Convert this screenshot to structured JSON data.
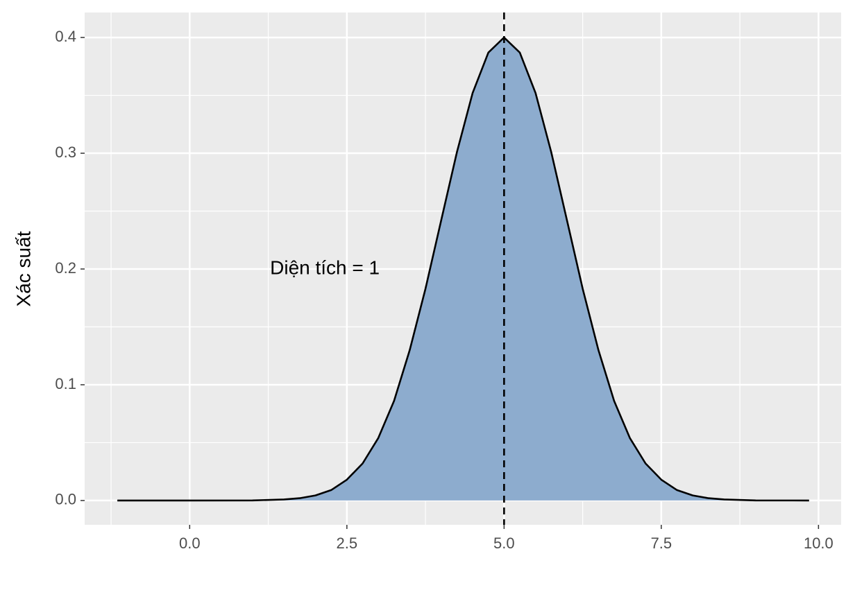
{
  "chart_data": {
    "type": "density",
    "ylabel": "Xác suất",
    "x": [
      -1.15,
      0,
      1,
      1.5,
      1.75,
      2,
      2.25,
      2.5,
      2.75,
      3,
      3.25,
      3.5,
      3.75,
      4,
      4.25,
      4.5,
      4.75,
      5,
      5.25,
      5.5,
      5.75,
      6,
      6.25,
      6.5,
      6.75,
      7,
      7.25,
      7.5,
      7.75,
      8,
      8.25,
      8.5,
      9,
      9.85
    ],
    "values": [
      0,
      0,
      0.0001,
      0.0009,
      0.002,
      0.0044,
      0.009,
      0.018,
      0.032,
      0.054,
      0.086,
      0.13,
      0.183,
      0.242,
      0.301,
      0.352,
      0.387,
      0.4,
      0.387,
      0.352,
      0.301,
      0.242,
      0.183,
      0.13,
      0.086,
      0.054,
      0.032,
      0.018,
      0.009,
      0.0044,
      0.002,
      0.0009,
      0.0001,
      0
    ],
    "color": "#8dacce",
    "line_color": "#000000",
    "vline": 5,
    "annotation": {
      "text": "Diện tích = 1",
      "x": 2.15,
      "y": 0.2
    },
    "xlim": [
      -1.67,
      10.36
    ],
    "ylim": [
      -0.021,
      0.4216
    ],
    "xticks": [
      {
        "value": 0,
        "label": "0.0"
      },
      2.5,
      {
        "value": 5,
        "label": "5.0"
      },
      7.5,
      {
        "value": 10,
        "label": "10.0"
      }
    ],
    "yticks": [
      {
        "value": 0,
        "label": "0.0"
      },
      0.1,
      0.2,
      0.3,
      0.4
    ],
    "grid": true
  }
}
